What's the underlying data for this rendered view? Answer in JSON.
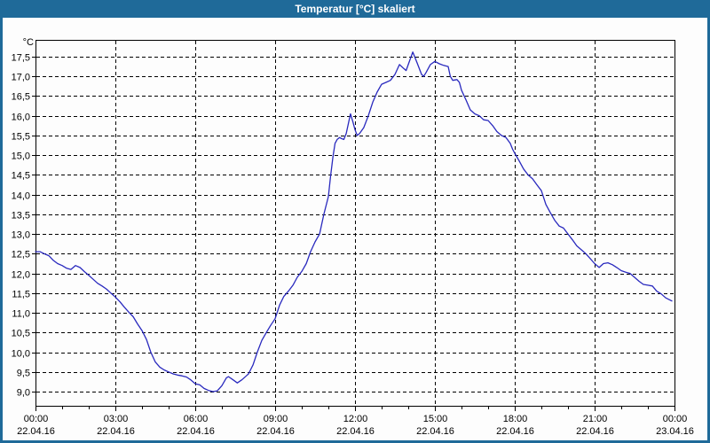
{
  "window": {
    "title": "Temperatur [°C] skaliert",
    "titlebar_color": "#1F6A99",
    "border_color": "#1F6A99",
    "content_background": "#FDFDFD"
  },
  "chart_data": {
    "type": "line",
    "title": "Temperatur [°C] skaliert",
    "y_unit_label": "°C",
    "ylabel": "",
    "xlabel": "",
    "grid": "dashed",
    "grid_color": "#000000",
    "axis_color": "#000000",
    "line_color": "#2929BE",
    "ylim": [
      9.0,
      17.5
    ],
    "xlim_hours": [
      0,
      24
    ],
    "y_ticks": [
      {
        "value": 17.5,
        "label": "17,5"
      },
      {
        "value": 17.0,
        "label": "17,0"
      },
      {
        "value": 16.5,
        "label": "16,5"
      },
      {
        "value": 16.0,
        "label": "16,0"
      },
      {
        "value": 15.5,
        "label": "15,5"
      },
      {
        "value": 15.0,
        "label": "15,0"
      },
      {
        "value": 14.5,
        "label": "14,5"
      },
      {
        "value": 14.0,
        "label": "14,0"
      },
      {
        "value": 13.5,
        "label": "13,5"
      },
      {
        "value": 13.0,
        "label": "13,0"
      },
      {
        "value": 12.5,
        "label": "12,5"
      },
      {
        "value": 12.0,
        "label": "12,0"
      },
      {
        "value": 11.5,
        "label": "11,5"
      },
      {
        "value": 11.0,
        "label": "11,0"
      },
      {
        "value": 10.5,
        "label": "10,5"
      },
      {
        "value": 10.0,
        "label": "10,0"
      },
      {
        "value": 9.5,
        "label": "9,5"
      },
      {
        "value": 9.0,
        "label": "9,0"
      }
    ],
    "x_ticks": [
      {
        "hour": 0,
        "time": "00:00",
        "date": "22.04.16"
      },
      {
        "hour": 3,
        "time": "03:00",
        "date": "22.04.16"
      },
      {
        "hour": 6,
        "time": "06:00",
        "date": "22.04.16"
      },
      {
        "hour": 9,
        "time": "09:00",
        "date": "22.04.16"
      },
      {
        "hour": 12,
        "time": "12:00",
        "date": "22.04.16"
      },
      {
        "hour": 15,
        "time": "15:00",
        "date": "22.04.16"
      },
      {
        "hour": 18,
        "time": "18:00",
        "date": "22.04.16"
      },
      {
        "hour": 21,
        "time": "21:00",
        "date": "22.04.16"
      },
      {
        "hour": 24,
        "time": "00:00",
        "date": "23.04.16"
      }
    ],
    "x_minor_tick_every_hours": 1,
    "series": [
      {
        "name": "Temperatur",
        "points": [
          [
            0,
            12.55
          ],
          [
            0.17,
            12.55
          ],
          [
            0.33,
            12.5
          ],
          [
            0.5,
            12.45
          ],
          [
            0.67,
            12.33
          ],
          [
            0.83,
            12.25
          ],
          [
            1,
            12.2
          ],
          [
            1.17,
            12.13
          ],
          [
            1.33,
            12.1
          ],
          [
            1.5,
            12.2
          ],
          [
            1.67,
            12.15
          ],
          [
            1.83,
            12.05
          ],
          [
            2,
            11.95
          ],
          [
            2.17,
            11.85
          ],
          [
            2.33,
            11.75
          ],
          [
            2.5,
            11.68
          ],
          [
            2.67,
            11.6
          ],
          [
            2.83,
            11.5
          ],
          [
            3,
            11.4
          ],
          [
            3.17,
            11.28
          ],
          [
            3.33,
            11.15
          ],
          [
            3.5,
            11.02
          ],
          [
            3.67,
            10.9
          ],
          [
            3.83,
            10.72
          ],
          [
            4,
            10.55
          ],
          [
            4.17,
            10.32
          ],
          [
            4.33,
            10
          ],
          [
            4.5,
            9.75
          ],
          [
            4.67,
            9.62
          ],
          [
            4.83,
            9.55
          ],
          [
            5,
            9.5
          ],
          [
            5.17,
            9.45
          ],
          [
            5.33,
            9.42
          ],
          [
            5.5,
            9.4
          ],
          [
            5.67,
            9.37
          ],
          [
            5.83,
            9.3
          ],
          [
            6,
            9.2
          ],
          [
            6.17,
            9.17
          ],
          [
            6.33,
            9.08
          ],
          [
            6.5,
            9.03
          ],
          [
            6.67,
            9
          ],
          [
            6.83,
            9.02
          ],
          [
            7,
            9.15
          ],
          [
            7.17,
            9.35
          ],
          [
            7.25,
            9.38
          ],
          [
            7.42,
            9.3
          ],
          [
            7.58,
            9.22
          ],
          [
            7.75,
            9.3
          ],
          [
            7.92,
            9.4
          ],
          [
            8,
            9.45
          ],
          [
            8.17,
            9.68
          ],
          [
            8.33,
            10
          ],
          [
            8.5,
            10.3
          ],
          [
            8.67,
            10.5
          ],
          [
            8.83,
            10.68
          ],
          [
            9,
            10.85
          ],
          [
            9.17,
            11.2
          ],
          [
            9.33,
            11.42
          ],
          [
            9.5,
            11.55
          ],
          [
            9.67,
            11.7
          ],
          [
            9.83,
            11.9
          ],
          [
            10,
            12.05
          ],
          [
            10.17,
            12.25
          ],
          [
            10.33,
            12.55
          ],
          [
            10.5,
            12.8
          ],
          [
            10.67,
            13
          ],
          [
            10.83,
            13.5
          ],
          [
            11,
            13.95
          ],
          [
            11.08,
            14.45
          ],
          [
            11.17,
            14.95
          ],
          [
            11.25,
            15.3
          ],
          [
            11.33,
            15.4
          ],
          [
            11.42,
            15.45
          ],
          [
            11.5,
            15.42
          ],
          [
            11.58,
            15.4
          ],
          [
            11.67,
            15.55
          ],
          [
            11.83,
            16.05
          ],
          [
            11.92,
            15.85
          ],
          [
            12,
            15.65
          ],
          [
            12.08,
            15.5
          ],
          [
            12.17,
            15.55
          ],
          [
            12.33,
            15.7
          ],
          [
            12.5,
            16
          ],
          [
            12.67,
            16.35
          ],
          [
            12.83,
            16.6
          ],
          [
            13,
            16.8
          ],
          [
            13.17,
            16.85
          ],
          [
            13.33,
            16.9
          ],
          [
            13.5,
            17.05
          ],
          [
            13.67,
            17.3
          ],
          [
            13.83,
            17.2
          ],
          [
            13.92,
            17.15
          ],
          [
            14,
            17.3
          ],
          [
            14.17,
            17.62
          ],
          [
            14.33,
            17.35
          ],
          [
            14.5,
            17.05
          ],
          [
            14.58,
            17
          ],
          [
            14.67,
            17.1
          ],
          [
            14.83,
            17.3
          ],
          [
            15,
            17.38
          ],
          [
            15.17,
            17.32
          ],
          [
            15.33,
            17.28
          ],
          [
            15.5,
            17.25
          ],
          [
            15.58,
            17
          ],
          [
            15.67,
            16.9
          ],
          [
            15.83,
            16.92
          ],
          [
            15.92,
            16.85
          ],
          [
            16,
            16.65
          ],
          [
            16.17,
            16.4
          ],
          [
            16.33,
            16.15
          ],
          [
            16.5,
            16.05
          ],
          [
            16.67,
            16
          ],
          [
            16.83,
            15.9
          ],
          [
            17,
            15.88
          ],
          [
            17.17,
            15.75
          ],
          [
            17.33,
            15.6
          ],
          [
            17.5,
            15.5
          ],
          [
            17.67,
            15.45
          ],
          [
            17.83,
            15.3
          ],
          [
            17.92,
            15.15
          ],
          [
            18,
            15.05
          ],
          [
            18.17,
            14.85
          ],
          [
            18.33,
            14.65
          ],
          [
            18.5,
            14.5
          ],
          [
            18.67,
            14.4
          ],
          [
            18.83,
            14.25
          ],
          [
            19,
            14.1
          ],
          [
            19.17,
            13.75
          ],
          [
            19.33,
            13.55
          ],
          [
            19.5,
            13.35
          ],
          [
            19.67,
            13.2
          ],
          [
            19.83,
            13.15
          ],
          [
            20,
            13
          ],
          [
            20.17,
            12.85
          ],
          [
            20.33,
            12.7
          ],
          [
            20.5,
            12.6
          ],
          [
            20.67,
            12.5
          ],
          [
            20.83,
            12.38
          ],
          [
            21,
            12.25
          ],
          [
            21.17,
            12.15
          ],
          [
            21.33,
            12.25
          ],
          [
            21.5,
            12.27
          ],
          [
            21.67,
            12.22
          ],
          [
            21.83,
            12.15
          ],
          [
            22,
            12.07
          ],
          [
            22.17,
            12.03
          ],
          [
            22.33,
            12
          ],
          [
            22.5,
            11.9
          ],
          [
            22.67,
            11.8
          ],
          [
            22.83,
            11.72
          ],
          [
            23,
            11.7
          ],
          [
            23.17,
            11.68
          ],
          [
            23.33,
            11.55
          ],
          [
            23.5,
            11.48
          ],
          [
            23.67,
            11.38
          ],
          [
            23.9,
            11.3
          ]
        ]
      }
    ]
  }
}
